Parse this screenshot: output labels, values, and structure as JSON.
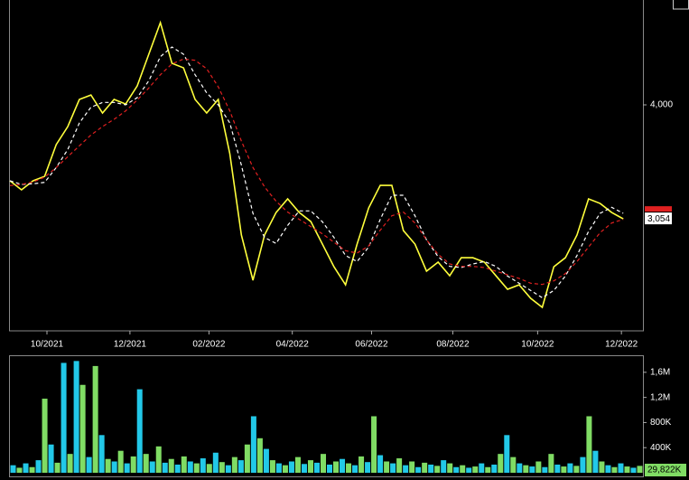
{
  "chart_data": [
    {
      "type": "line",
      "series": [
        {
          "color": "#ffff3c",
          "dash": false,
          "values": [
            3370,
            3295,
            3370,
            3407,
            3670,
            3820,
            4045,
            4082,
            3932,
            4045,
            4007,
            4157,
            4420,
            4682,
            4345,
            4307,
            4045,
            3932,
            4045,
            3595,
            2920,
            2545,
            2920,
            3107,
            3220,
            3107,
            3032,
            2845,
            2657,
            2507,
            2845,
            3145,
            3332,
            3332,
            2957,
            2845,
            2620,
            2695,
            2582,
            2732,
            2732,
            2695,
            2582,
            2470,
            2507,
            2395,
            2320,
            2657,
            2732,
            2920,
            3220,
            3182,
            3107,
            3054
          ]
        },
        {
          "color": "#ffffff",
          "dash": true,
          "values": [
            3370,
            3340,
            3345,
            3357,
            3480,
            3630,
            3850,
            3980,
            4020,
            4020,
            4000,
            4060,
            4200,
            4400,
            4480,
            4420,
            4250,
            4100,
            4000,
            3850,
            3500,
            3100,
            2900,
            2850,
            3000,
            3120,
            3120,
            3030,
            2900,
            2750,
            2700,
            2820,
            3050,
            3250,
            3250,
            3080,
            2880,
            2740,
            2660,
            2650,
            2680,
            2700,
            2660,
            2580,
            2520,
            2460,
            2400,
            2460,
            2580,
            2750,
            2950,
            3100,
            3150,
            3100
          ]
        },
        {
          "color": "#e02020",
          "dash": true,
          "values": [
            3330,
            3340,
            3360,
            3400,
            3480,
            3570,
            3660,
            3750,
            3820,
            3880,
            3950,
            4040,
            4140,
            4250,
            4340,
            4380,
            4370,
            4300,
            4150,
            3950,
            3700,
            3480,
            3320,
            3200,
            3110,
            3050,
            2990,
            2930,
            2860,
            2790,
            2770,
            2830,
            2960,
            3080,
            3110,
            3020,
            2880,
            2760,
            2680,
            2660,
            2660,
            2650,
            2620,
            2590,
            2560,
            2520,
            2510,
            2540,
            2600,
            2700,
            2820,
            2940,
            3020,
            3050
          ]
        }
      ],
      "xlim": [
        0,
        54.7
      ],
      "xticks": [
        {
          "value": 3.2,
          "label": "10/2021"
        },
        {
          "value": 10.37,
          "label": "12/2021"
        },
        {
          "value": 17.2,
          "label": "02/2022"
        },
        {
          "value": 24.4,
          "label": "04/2022"
        },
        {
          "value": 31.25,
          "label": "06/2022"
        },
        {
          "value": 38.27,
          "label": "08/2022"
        },
        {
          "value": 45.6,
          "label": "10/2022"
        },
        {
          "value": 52.84,
          "label": "12/2022"
        }
      ],
      "ylim": [
        2125,
        4870
      ],
      "yticks": [
        {
          "value": 4000,
          "label": "4,000"
        }
      ],
      "last_price_label": "3,054"
    },
    {
      "type": "bar",
      "bar_colors": [
        "#22c8e8",
        "#80dc64"
      ],
      "values": [
        120000,
        80000,
        150000,
        90000,
        200000,
        1180000,
        450000,
        160000,
        1750000,
        300000,
        1780000,
        1400000,
        250000,
        1700000,
        600000,
        220000,
        180000,
        350000,
        150000,
        260000,
        1330000,
        300000,
        180000,
        420000,
        160000,
        220000,
        130000,
        260000,
        180000,
        150000,
        230000,
        140000,
        320000,
        170000,
        120000,
        250000,
        200000,
        450000,
        900000,
        550000,
        380000,
        200000,
        150000,
        120000,
        180000,
        250000,
        140000,
        200000,
        160000,
        300000,
        130000,
        180000,
        220000,
        150000,
        120000,
        260000,
        170000,
        900000,
        280000,
        180000,
        150000,
        230000,
        120000,
        180000,
        90000,
        160000,
        130000,
        110000,
        200000,
        150000,
        90000,
        120000,
        80000,
        100000,
        150000,
        90000,
        130000,
        300000,
        600000,
        250000,
        150000,
        120000,
        100000,
        180000,
        90000,
        300000,
        130000,
        100000,
        150000,
        110000,
        250000,
        900000,
        350000,
        180000,
        120000,
        90000,
        150000,
        100000,
        80000,
        110000
      ],
      "ylim": [
        0,
        1857000
      ],
      "yticks": [
        {
          "value": 400000,
          "label": "400K"
        },
        {
          "value": 800000,
          "label": "800K"
        },
        {
          "value": 1200000,
          "label": "1,2M"
        },
        {
          "value": 1600000,
          "label": "1,6M"
        }
      ],
      "annotation": "29,822K"
    }
  ]
}
